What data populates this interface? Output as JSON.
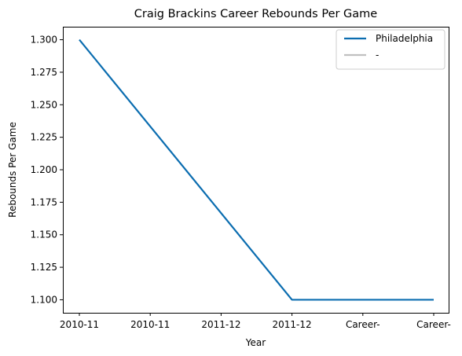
{
  "chart_data": {
    "type": "line",
    "title": "Craig Brackins Career Rebounds Per Game",
    "xlabel": "Year",
    "ylabel": "Rebounds Per Game",
    "categories": [
      "2010-11",
      "2010-11",
      "2011-12",
      "2011-12",
      "Career-",
      "Career-"
    ],
    "ylim": [
      1.09,
      1.31
    ],
    "yticks": [
      "1.100",
      "1.125",
      "1.150",
      "1.175",
      "1.200",
      "1.225",
      "1.250",
      "1.275",
      "1.300"
    ],
    "grid": false,
    "legend_position": "top-right",
    "series": [
      {
        "name": "Philadelphia",
        "color": "#0b6db0",
        "values": [
          1.3,
          null,
          null,
          1.1,
          null,
          1.1
        ]
      },
      {
        "name": "-",
        "color": "#c0c0c0",
        "values": [
          null,
          null,
          null,
          null,
          null,
          null
        ]
      }
    ]
  }
}
